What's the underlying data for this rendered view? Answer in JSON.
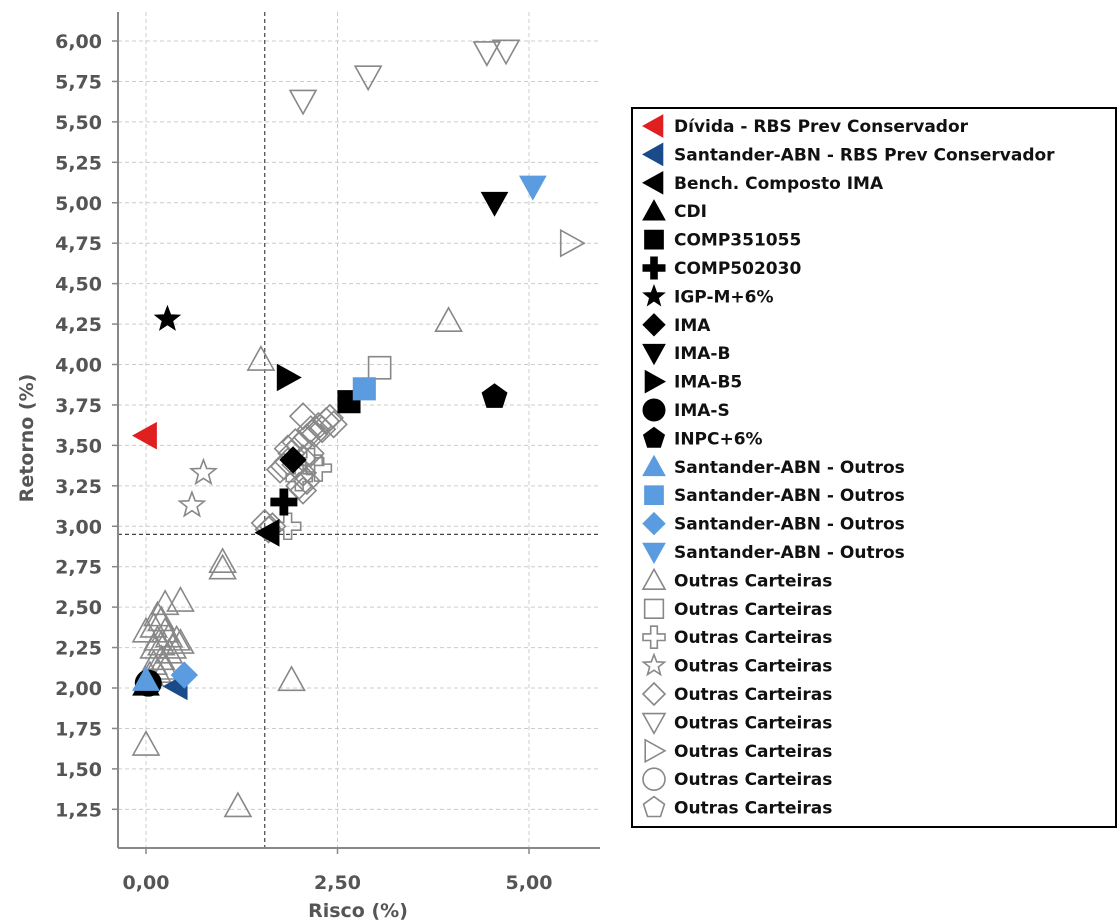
{
  "chart_data": {
    "type": "scatter",
    "xlabel": "Risco (%)",
    "ylabel": "Retorno (%)",
    "xlim": [
      -0.2,
      5.9
    ],
    "ylim": [
      1.05,
      6.25
    ],
    "xticks": [
      0,
      2.5,
      5
    ],
    "xtick_labels": [
      "0,00",
      "2,50",
      "5,00"
    ],
    "yticks": [
      1.25,
      1.5,
      1.75,
      2.0,
      2.25,
      2.5,
      2.75,
      3.0,
      3.25,
      3.5,
      3.75,
      4.0,
      4.25,
      4.5,
      4.75,
      5.0,
      5.25,
      5.5,
      5.75,
      6.0
    ],
    "ytick_labels": [
      "1,25",
      "1,50",
      "1,75",
      "2,00",
      "2,25",
      "2,50",
      "2,75",
      "3,00",
      "3,25",
      "3,50",
      "3,75",
      "4,00",
      "4,25",
      "4,50",
      "4,75",
      "5,00",
      "5,25",
      "5,50",
      "5,75",
      "6,00"
    ],
    "grid": true,
    "reference_lines": {
      "x": 1.55,
      "y": 2.95
    },
    "legend_position": "right",
    "series": [
      {
        "name": "Dívida - RBS Prev Conservador",
        "marker": "triangle-left",
        "color": "#e02020",
        "filled": true,
        "points": [
          [
            0.0,
            3.56
          ]
        ]
      },
      {
        "name": "Santander-ABN - RBS Prev Conservador",
        "marker": "triangle-left",
        "color": "#1a4a8a",
        "filled": true,
        "points": [
          [
            0.4,
            2.01
          ]
        ]
      },
      {
        "name": "Bench. Composto IMA",
        "marker": "triangle-left",
        "color": "#000000",
        "filled": true,
        "points": [
          [
            1.6,
            2.96
          ]
        ]
      },
      {
        "name": "CDI",
        "marker": "triangle-up",
        "color": "#000000",
        "filled": true,
        "points": [
          [
            0.0,
            2.02
          ]
        ]
      },
      {
        "name": "COMP351055",
        "marker": "square",
        "color": "#000000",
        "filled": true,
        "points": [
          [
            2.65,
            3.77
          ]
        ]
      },
      {
        "name": "COMP502030",
        "marker": "plus",
        "color": "#000000",
        "filled": true,
        "points": [
          [
            1.8,
            3.15
          ]
        ]
      },
      {
        "name": "IGP-M+6%",
        "marker": "star",
        "color": "#000000",
        "filled": true,
        "points": [
          [
            0.28,
            4.28
          ]
        ]
      },
      {
        "name": "IMA",
        "marker": "diamond",
        "color": "#000000",
        "filled": true,
        "points": [
          [
            1.92,
            3.41
          ]
        ]
      },
      {
        "name": "IMA-B",
        "marker": "triangle-down",
        "color": "#000000",
        "filled": true,
        "points": [
          [
            4.55,
            5.0
          ]
        ]
      },
      {
        "name": "IMA-B5",
        "marker": "triangle-right",
        "color": "#000000",
        "filled": true,
        "points": [
          [
            1.85,
            3.92
          ]
        ]
      },
      {
        "name": "IMA-S",
        "marker": "circle",
        "color": "#000000",
        "filled": true,
        "points": [
          [
            0.03,
            2.03
          ]
        ]
      },
      {
        "name": "INPC+6%",
        "marker": "pentagon",
        "color": "#000000",
        "filled": true,
        "points": [
          [
            4.55,
            3.8
          ]
        ]
      },
      {
        "name": "Santander-ABN - Outros",
        "marker": "triangle-up",
        "color": "#5b9be0",
        "filled": true,
        "points": [
          [
            0.0,
            2.05
          ]
        ]
      },
      {
        "name": "Santander-ABN - Outros",
        "marker": "square",
        "color": "#5b9be0",
        "filled": true,
        "points": [
          [
            2.85,
            3.85
          ]
        ]
      },
      {
        "name": "Santander-ABN - Outros",
        "marker": "diamond",
        "color": "#5b9be0",
        "filled": true,
        "points": [
          [
            0.5,
            2.08
          ]
        ]
      },
      {
        "name": "Santander-ABN - Outros",
        "marker": "triangle-down",
        "color": "#5b9be0",
        "filled": true,
        "points": [
          [
            5.05,
            5.1
          ]
        ]
      },
      {
        "name": "Outras Carteiras",
        "marker": "triangle-up",
        "color": "#888888",
        "filled": false,
        "points": [
          [
            0.0,
            1.65
          ],
          [
            1.2,
            1.27
          ],
          [
            1.9,
            2.05
          ],
          [
            1.5,
            4.03
          ],
          [
            3.95,
            4.27
          ],
          [
            1.0,
            2.78
          ],
          [
            1.0,
            2.74
          ],
          [
            0.45,
            2.54
          ],
          [
            0.25,
            2.52
          ],
          [
            0.15,
            2.45
          ],
          [
            0.2,
            2.42
          ],
          [
            0.1,
            2.38
          ],
          [
            0.25,
            2.35
          ],
          [
            0.3,
            2.32
          ],
          [
            0.4,
            2.3
          ],
          [
            0.45,
            2.28
          ],
          [
            0.15,
            2.3
          ],
          [
            0.2,
            2.27
          ],
          [
            0.1,
            2.25
          ],
          [
            0.3,
            2.22
          ],
          [
            0.2,
            2.18
          ],
          [
            0.1,
            2.15
          ],
          [
            0.25,
            2.12
          ],
          [
            0.15,
            2.1
          ],
          [
            0.05,
            2.08
          ],
          [
            0.0,
            2.35
          ],
          [
            0.35,
            2.25
          ]
        ]
      },
      {
        "name": "Outras Carteiras",
        "marker": "square",
        "color": "#888888",
        "filled": false,
        "points": [
          [
            3.05,
            3.98
          ]
        ]
      },
      {
        "name": "Outras Carteiras",
        "marker": "plus",
        "color": "#888888",
        "filled": false,
        "points": [
          [
            1.85,
            3.0
          ],
          [
            2.25,
            3.36
          ],
          [
            2.0,
            3.3
          ],
          [
            2.15,
            3.4
          ]
        ]
      },
      {
        "name": "Outras Carteiras",
        "marker": "star",
        "color": "#888888",
        "filled": false,
        "points": [
          [
            0.75,
            3.33
          ],
          [
            0.6,
            3.13
          ]
        ]
      },
      {
        "name": "Outras Carteiras",
        "marker": "diamond",
        "color": "#888888",
        "filled": false,
        "points": [
          [
            2.05,
            3.68
          ],
          [
            2.15,
            3.6
          ],
          [
            2.25,
            3.62
          ],
          [
            2.35,
            3.65
          ],
          [
            2.4,
            3.67
          ],
          [
            2.45,
            3.63
          ],
          [
            2.1,
            3.55
          ],
          [
            2.0,
            3.5
          ],
          [
            1.9,
            3.45
          ],
          [
            1.85,
            3.4
          ],
          [
            1.8,
            3.37
          ],
          [
            1.75,
            3.35
          ],
          [
            2.05,
            3.33
          ],
          [
            2.1,
            3.28
          ],
          [
            2.0,
            3.25
          ],
          [
            2.05,
            3.22
          ],
          [
            2.15,
            3.45
          ],
          [
            2.2,
            3.57
          ],
          [
            1.95,
            3.52
          ],
          [
            2.3,
            3.6
          ],
          [
            1.85,
            3.48
          ],
          [
            1.95,
            3.38
          ],
          [
            2.05,
            3.42
          ],
          [
            1.65,
            3.0
          ],
          [
            1.6,
            2.98
          ],
          [
            1.55,
            3.02
          ]
        ]
      },
      {
        "name": "Outras Carteiras",
        "marker": "triangle-down",
        "color": "#888888",
        "filled": false,
        "points": [
          [
            2.05,
            5.63
          ],
          [
            2.9,
            5.78
          ],
          [
            4.45,
            5.93
          ],
          [
            4.7,
            5.94
          ]
        ]
      },
      {
        "name": "Outras Carteiras",
        "marker": "triangle-right",
        "color": "#888888",
        "filled": false,
        "points": [
          [
            5.55,
            4.75
          ]
        ]
      },
      {
        "name": "Outras Carteiras",
        "marker": "circle",
        "color": "#888888",
        "filled": false,
        "points": []
      },
      {
        "name": "Outras Carteiras",
        "marker": "pentagon",
        "color": "#888888",
        "filled": false,
        "points": []
      }
    ]
  }
}
